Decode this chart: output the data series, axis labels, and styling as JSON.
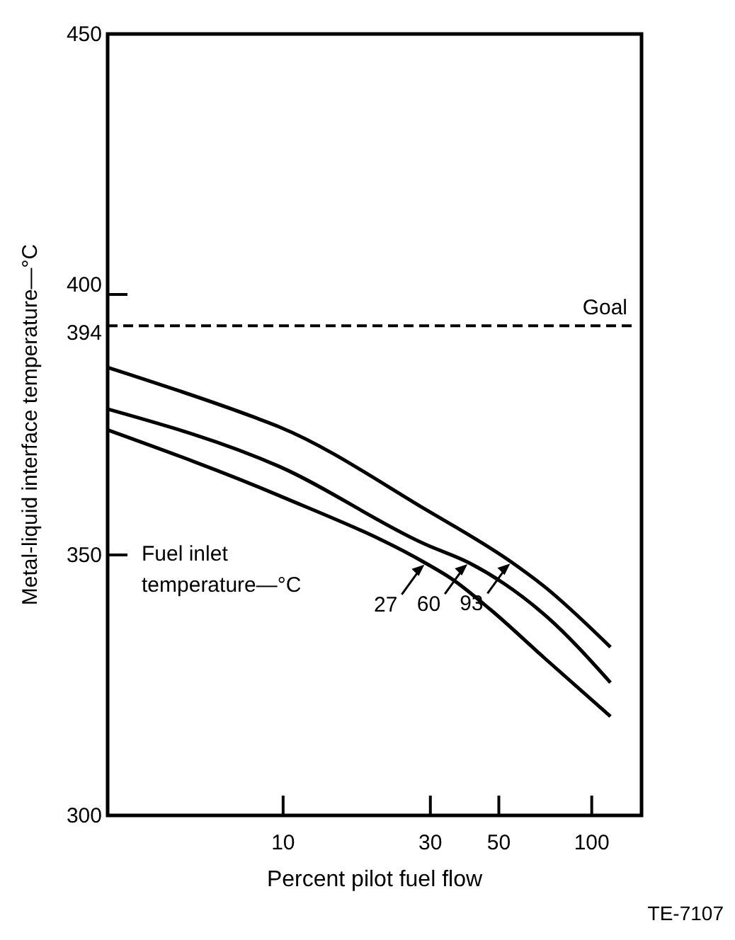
{
  "chart_data": {
    "type": "line",
    "xlabel": "Percent pilot fuel flow",
    "ylabel": "Metal-liquid interface temperature—°C",
    "legend_title": "Fuel inlet temperature—°C",
    "log": "x",
    "xlim": [
      2.7,
      145
    ],
    "xticks": [
      10,
      30,
      50,
      100
    ],
    "ylim": [
      300,
      450
    ],
    "yticks": [
      300,
      350,
      394,
      400,
      450
    ],
    "line_style": "solid",
    "legend": "bottom right",
    "marker": "none",
    "annotations": [
      "TE-7107"
    ],
    "ref_lines": [
      {
        "axis": "y",
        "value": 394,
        "label": "Goal",
        "color": "#000000",
        "line_style": "dashed"
      }
    ],
    "series": [
      {
        "name": "27",
        "color": "#000000",
        "x": [
          2.7,
          9.7,
          29,
          35,
          47,
          70,
          115
        ],
        "values": [
          374,
          361.4,
          348.4,
          345.5,
          339.5,
          330.3,
          319
        ]
      },
      {
        "name": "60",
        "color": "#000000",
        "x": [
          2.7,
          9.7,
          29,
          40,
          52,
          72,
          115
        ],
        "values": [
          378,
          367,
          352,
          348.5,
          344.5,
          338,
          325.5
        ]
      },
      {
        "name": "93",
        "color": "#000000",
        "x": [
          2.7,
          8,
          9.7,
          29,
          55,
          70,
          115
        ],
        "values": [
          386,
          376.5,
          374.6,
          358.7,
          348.6,
          344,
          332.3
        ]
      }
    ]
  }
}
